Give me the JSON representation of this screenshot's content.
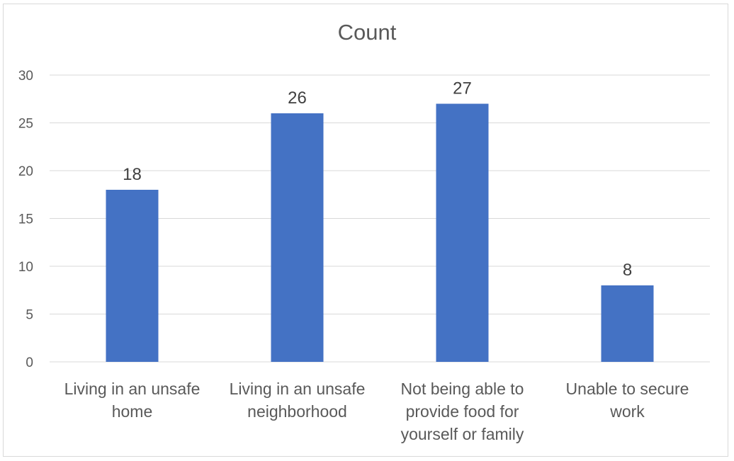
{
  "chart_data": {
    "type": "bar",
    "title": "Count",
    "categories": [
      [
        "Living in an unsafe",
        "home"
      ],
      [
        "Living in an unsafe",
        "neighborhood"
      ],
      [
        "Not being able to",
        "provide food for",
        "yourself or family"
      ],
      [
        "Unable to secure",
        "work"
      ]
    ],
    "values": [
      18,
      26,
      27,
      8
    ],
    "ylim": [
      0,
      30
    ],
    "yticks": [
      0,
      5,
      10,
      15,
      20,
      25,
      30
    ],
    "grid": true,
    "legend": "none",
    "bar_color": "#4472C4",
    "gridline_color": "#d9d9d9",
    "data_labels": true
  }
}
